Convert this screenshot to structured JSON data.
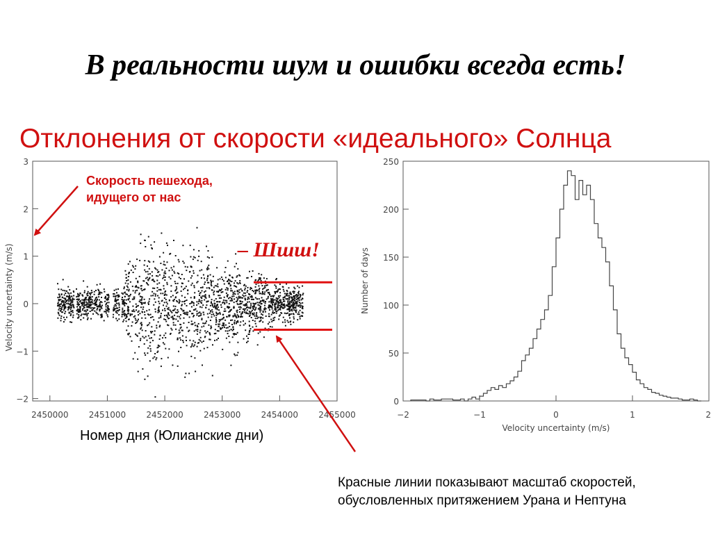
{
  "slide": {
    "title": "В реальности шум и ошибки всегда есть!",
    "subtitle": "Отклонения от скорости «идеального» Солнца",
    "callout_line1": "Скорость пешехода,",
    "callout_line2": "идущего от нас",
    "shh_label": "– Шшш!",
    "xaxis_caption": "Номер дня (Юлианские дни)",
    "note_line1": "Красные линии показывают масштаб скоростей,",
    "note_line2": "обусловленных притяжением Урана и Нептуна",
    "accent_color": "#d01010"
  },
  "chart_data": [
    {
      "type": "scatter",
      "ylabel": "Velocity uncertainty (m/s)",
      "xlim": [
        2449700,
        2455000
      ],
      "ylim": [
        -2.05,
        3.0
      ],
      "xticks": [
        "2450000",
        "2451000",
        "2452000",
        "2453000",
        "2454000",
        "2455000"
      ],
      "yticks": [
        "3",
        "2",
        "1",
        "0",
        "−1",
        "−2"
      ],
      "red_levels": [
        0.45,
        -0.55
      ],
      "note": "dense cloud of ~2000 daily points between JD 2450100 and 2454400; spread about ±0.3 at edges, ±1 near JD 2452000–2453000"
    },
    {
      "type": "bar",
      "xlabel": "Velocity uncertainty (m/s)",
      "ylabel": "Number of days",
      "xlim": [
        -2,
        2
      ],
      "ylim": [
        0,
        250
      ],
      "xticks": [
        "−2",
        "−1",
        "0",
        "1",
        "2"
      ],
      "yticks": [
        "250",
        "200",
        "150",
        "100",
        "50",
        "0"
      ],
      "bin_width": 0.05,
      "bin_start": -1.9,
      "values": [
        1,
        1,
        1,
        1,
        0,
        2,
        1,
        1,
        2,
        2,
        2,
        1,
        1,
        2,
        0,
        2,
        4,
        2,
        5,
        8,
        11,
        14,
        12,
        16,
        14,
        18,
        21,
        25,
        31,
        42,
        48,
        55,
        65,
        75,
        85,
        95,
        110,
        140,
        170,
        200,
        225,
        240,
        235,
        210,
        230,
        215,
        225,
        210,
        185,
        170,
        160,
        145,
        120,
        95,
        70,
        55,
        45,
        38,
        30,
        22,
        18,
        14,
        12,
        9,
        8,
        6,
        5,
        4,
        3,
        3,
        2,
        1,
        1,
        2,
        1,
        0
      ]
    }
  ]
}
